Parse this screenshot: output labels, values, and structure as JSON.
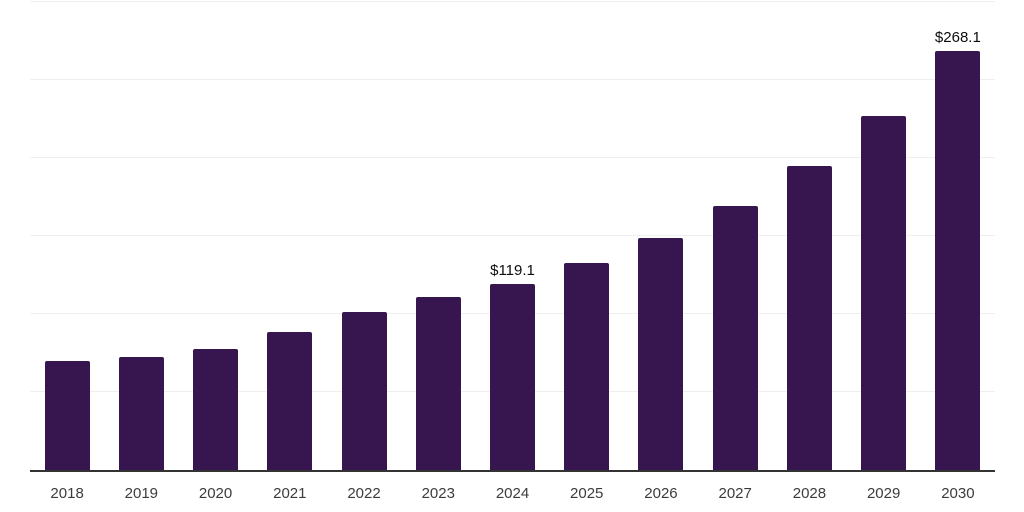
{
  "chart_data": {
    "type": "bar",
    "title": "",
    "xlabel": "",
    "ylabel": "",
    "categories": [
      "2018",
      "2019",
      "2020",
      "2021",
      "2022",
      "2023",
      "2024",
      "2025",
      "2026",
      "2027",
      "2028",
      "2029",
      "2030"
    ],
    "values": [
      70.0,
      72.3,
      77.4,
      88.3,
      101.1,
      110.7,
      119.1,
      132.4,
      148.4,
      168.9,
      194.5,
      226.5,
      268.1
    ],
    "data_labels": [
      null,
      null,
      null,
      null,
      null,
      null,
      "$119.1",
      null,
      null,
      null,
      null,
      null,
      "$268.1"
    ],
    "ylim": [
      0,
      300
    ],
    "gridline_interval": 50,
    "grid": "horizontal-only",
    "legend": "none",
    "y_axis_labels_visible": false,
    "colors": {
      "bar": "#371650",
      "axis_line": "#333333",
      "gridline": "#efefef",
      "tick_label": "#3c3c3c",
      "data_label": "#0d0d0d",
      "background": "#ffffff"
    }
  }
}
